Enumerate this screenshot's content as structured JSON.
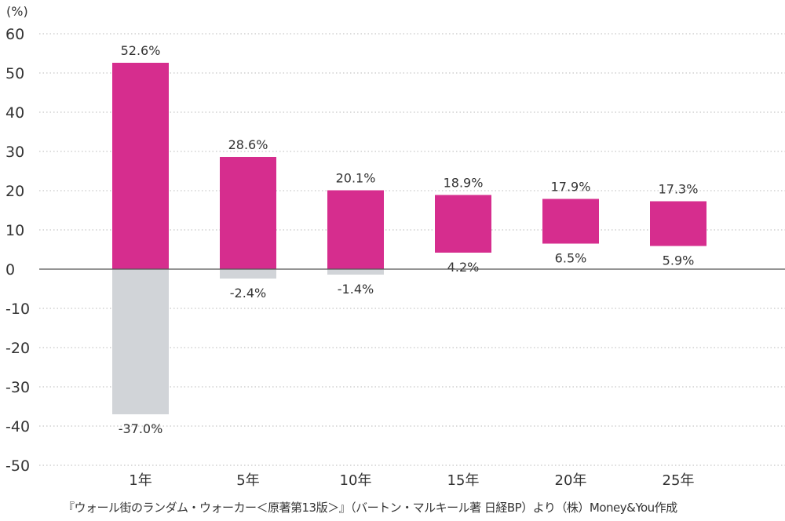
{
  "chart_data": {
    "type": "bar",
    "ylabel": "(%)",
    "ylim": [
      -50,
      60
    ],
    "yticks": [
      60,
      50,
      40,
      30,
      20,
      10,
      0,
      -10,
      -20,
      -30,
      -40,
      -50
    ],
    "grid": true,
    "categories": [
      "1年",
      "5年",
      "10年",
      "15年",
      "20年",
      "25年"
    ],
    "series": [
      {
        "values": [
          52.6,
          28.6,
          20.1,
          18.9,
          17.9,
          17.3
        ],
        "labels": [
          "52.6%",
          "28.6%",
          "20.1%",
          "18.9%",
          "17.9%",
          "17.3%"
        ]
      },
      {
        "values": [
          -37.0,
          -2.4,
          -1.4,
          4.2,
          6.5,
          5.9
        ],
        "labels": [
          "-37.0%",
          "-2.4%",
          "-1.4%",
          "4.2%",
          "6.5%",
          "5.9%"
        ]
      }
    ],
    "colors": {
      "max": "#d62d8e",
      "negative": "#d1d4d8",
      "grid": "#b8b8b8",
      "axis": "#555555"
    }
  },
  "source": "『ウォール街のランダム・ウォーカー＜原著第13版＞』（バートン・マルキール著 日経BP）より（株）Money&You作成"
}
